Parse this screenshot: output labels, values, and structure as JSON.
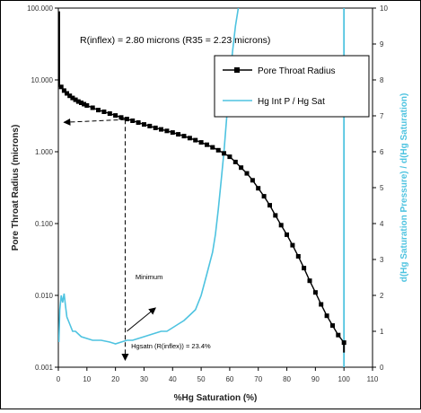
{
  "chart_data": {
    "type": "line",
    "title": "R(inflex) = 2.80 microns  (R35 = 2.23 microns)",
    "xlabel": "%Hg Saturation (%)",
    "ylabel_left": "Pore Throat Radius (microns)",
    "ylabel_right": "d(Hg Saturation Pressure) / d(Hg Saturation)",
    "xlim": [
      0,
      110
    ],
    "x_ticks": [
      "0",
      "10",
      "20",
      "30",
      "40",
      "50",
      "60",
      "70",
      "80",
      "90",
      "100",
      "110"
    ],
    "ylim_left_log": [
      0.001,
      100
    ],
    "y_ticks_left": [
      "0.001",
      "0.010",
      "0.100",
      "1.000",
      "10.000",
      "100.000"
    ],
    "ylim_right": [
      0,
      10
    ],
    "y_ticks_right": [
      "0",
      "1",
      "2",
      "3",
      "4",
      "5",
      "6",
      "7",
      "8",
      "9",
      "10"
    ],
    "grid": false,
    "legend_position": "upper-right",
    "colors": {
      "pore_series": "#000000",
      "hg_series": "#4ec3e0",
      "annotation": "#000000"
    },
    "series": [
      {
        "name": "Pore Throat Radius",
        "axis": "left",
        "marker": "square",
        "x": [
          1,
          2,
          3,
          4,
          5,
          6,
          7,
          8,
          9,
          10,
          12,
          14,
          16,
          18,
          20,
          22,
          24,
          26,
          28,
          30,
          32,
          34,
          36,
          38,
          40,
          42,
          44,
          46,
          48,
          50,
          52,
          54,
          56,
          58,
          60,
          62,
          64,
          66,
          68,
          70,
          72,
          74,
          76,
          78,
          80,
          82,
          84,
          86,
          88,
          90,
          92,
          94,
          96,
          98,
          100
        ],
        "y": [
          8.0,
          7.1,
          6.5,
          6.0,
          5.6,
          5.3,
          5.0,
          4.8,
          4.6,
          4.4,
          4.1,
          3.8,
          3.6,
          3.4,
          3.2,
          3.0,
          2.85,
          2.7,
          2.55,
          2.4,
          2.28,
          2.15,
          2.05,
          1.95,
          1.85,
          1.75,
          1.65,
          1.55,
          1.45,
          1.35,
          1.25,
          1.15,
          1.05,
          0.95,
          0.85,
          0.72,
          0.6,
          0.5,
          0.4,
          0.31,
          0.24,
          0.18,
          0.13,
          0.095,
          0.07,
          0.05,
          0.035,
          0.024,
          0.016,
          0.011,
          0.0075,
          0.0052,
          0.0038,
          0.0028,
          0.0022
        ]
      },
      {
        "name": "Hg Int P / Hg Sat",
        "axis": "right",
        "x": [
          0.2,
          0.5,
          1,
          1.5,
          2,
          2.5,
          3,
          4,
          5,
          6,
          8,
          10,
          12,
          15,
          18,
          20,
          22,
          24,
          26,
          28,
          30,
          32,
          34,
          36,
          38,
          40,
          42,
          44,
          46,
          48,
          50,
          52,
          54,
          55,
          56,
          57,
          58,
          59,
          60,
          61,
          62,
          63,
          64
        ],
        "y": [
          0.7,
          1.6,
          2.0,
          1.8,
          2.05,
          1.7,
          1.4,
          1.2,
          1.0,
          1.0,
          0.85,
          0.8,
          0.75,
          0.75,
          0.7,
          0.65,
          0.7,
          0.75,
          0.75,
          0.8,
          0.85,
          0.9,
          0.95,
          1.0,
          1.0,
          1.1,
          1.2,
          1.3,
          1.45,
          1.6,
          2.0,
          2.6,
          3.2,
          3.7,
          4.4,
          5.2,
          6.0,
          7.0,
          8.0,
          8.8,
          9.5,
          10.0,
          10.5
        ]
      }
    ],
    "extra_hg_vertical_x": 100,
    "annotations": {
      "minimum_label": "Minimum",
      "inflection_label": "Hgsatn (R(inflex)) = 23.4%"
    },
    "inflection_point": {
      "x": 23.4,
      "y": 2.8
    }
  }
}
